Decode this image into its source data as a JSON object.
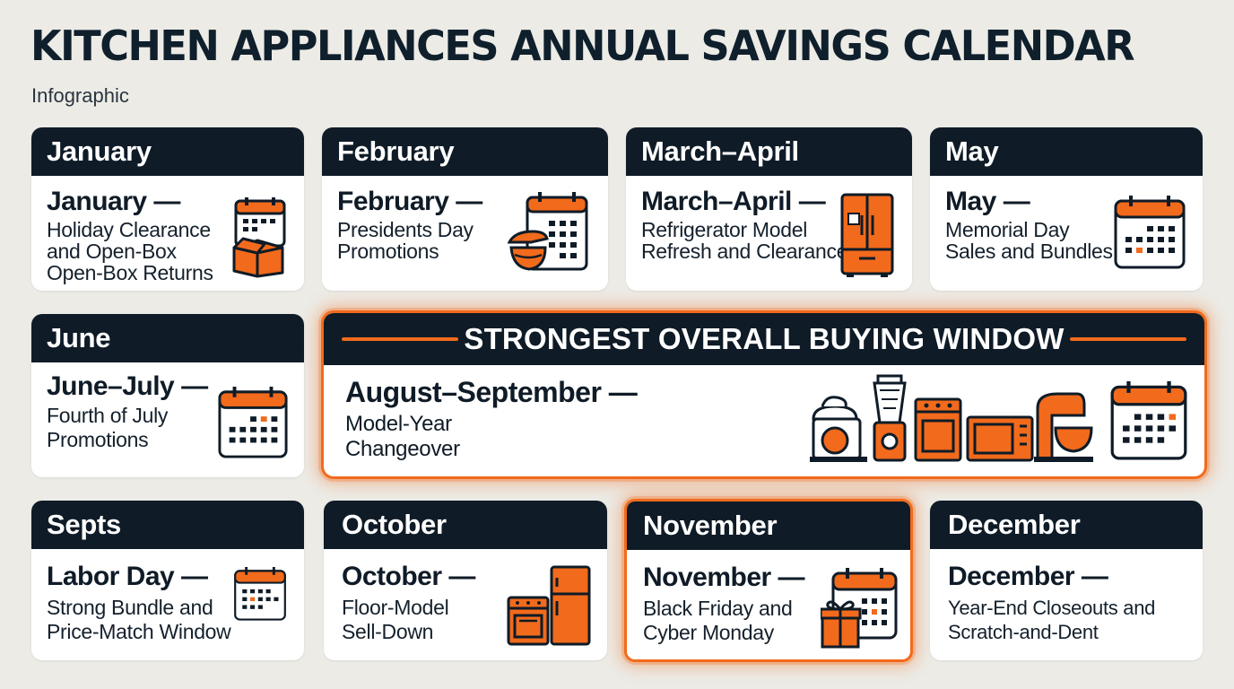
{
  "title": "KITCHEN APPLIANCES ANNUAL SAVINGS CALENDAR",
  "subtitle": "Infographic",
  "colors": {
    "navy": "#0f1c27",
    "orange": "#f26a1b",
    "background": "#ecebe6"
  },
  "cards": [
    {
      "header": "January",
      "lead": "January —",
      "desc": [
        "Holiday Clearance",
        "and Open-Box",
        "Open-Box Returns"
      ],
      "icon": "calendar-box-icon",
      "highlight": false
    },
    {
      "header": "February",
      "lead": "February —",
      "desc": [
        "Presidents Day",
        "Promotions"
      ],
      "icon": "calendar-mixer-icon",
      "highlight": false
    },
    {
      "header": "March–April",
      "lead": "March–April —",
      "desc": [
        "Refrigerator Model",
        "Refresh and Clearance"
      ],
      "icon": "refrigerator-icon",
      "highlight": false
    },
    {
      "header": "May",
      "lead": "May —",
      "desc": [
        "Memorial Day",
        "Sales and Bundles"
      ],
      "icon": "calendar-icon",
      "highlight": false
    },
    {
      "header": "June",
      "lead": "June–July —",
      "desc": [
        "Fourth of July",
        "Promotions"
      ],
      "icon": "calendar-icon",
      "highlight": false
    },
    {
      "header": "Septs",
      "lead": "Labor Day —",
      "desc": [
        "Strong Bundle and",
        "Price-Match Window"
      ],
      "icon": "calendar-icon",
      "highlight": false
    },
    {
      "header": "October",
      "lead": "October —",
      "desc": [
        "Floor-Model",
        "Sell-Down"
      ],
      "icon": "oven-fridge-icon",
      "highlight": false
    },
    {
      "header": "November",
      "lead": "November —",
      "desc": [
        "Black Friday and",
        "Cyber Monday"
      ],
      "icon": "calendar-gift-icon",
      "highlight": true
    },
    {
      "header": "December",
      "lead": "December —",
      "desc": [
        "Year-End Closeouts and",
        "Scratch-and-Dent"
      ],
      "icon": "none",
      "highlight": false
    }
  ],
  "banner": {
    "header": "STRONGEST OVERALL BUYING WINDOW",
    "lead": "August–September —",
    "desc": [
      "Model-Year",
      "Changeover"
    ],
    "icons": [
      "stand-mixer-icon",
      "blender-icon",
      "range-icon",
      "microwave-icon",
      "stand-mixer-icon",
      "calendar-icon"
    ]
  }
}
